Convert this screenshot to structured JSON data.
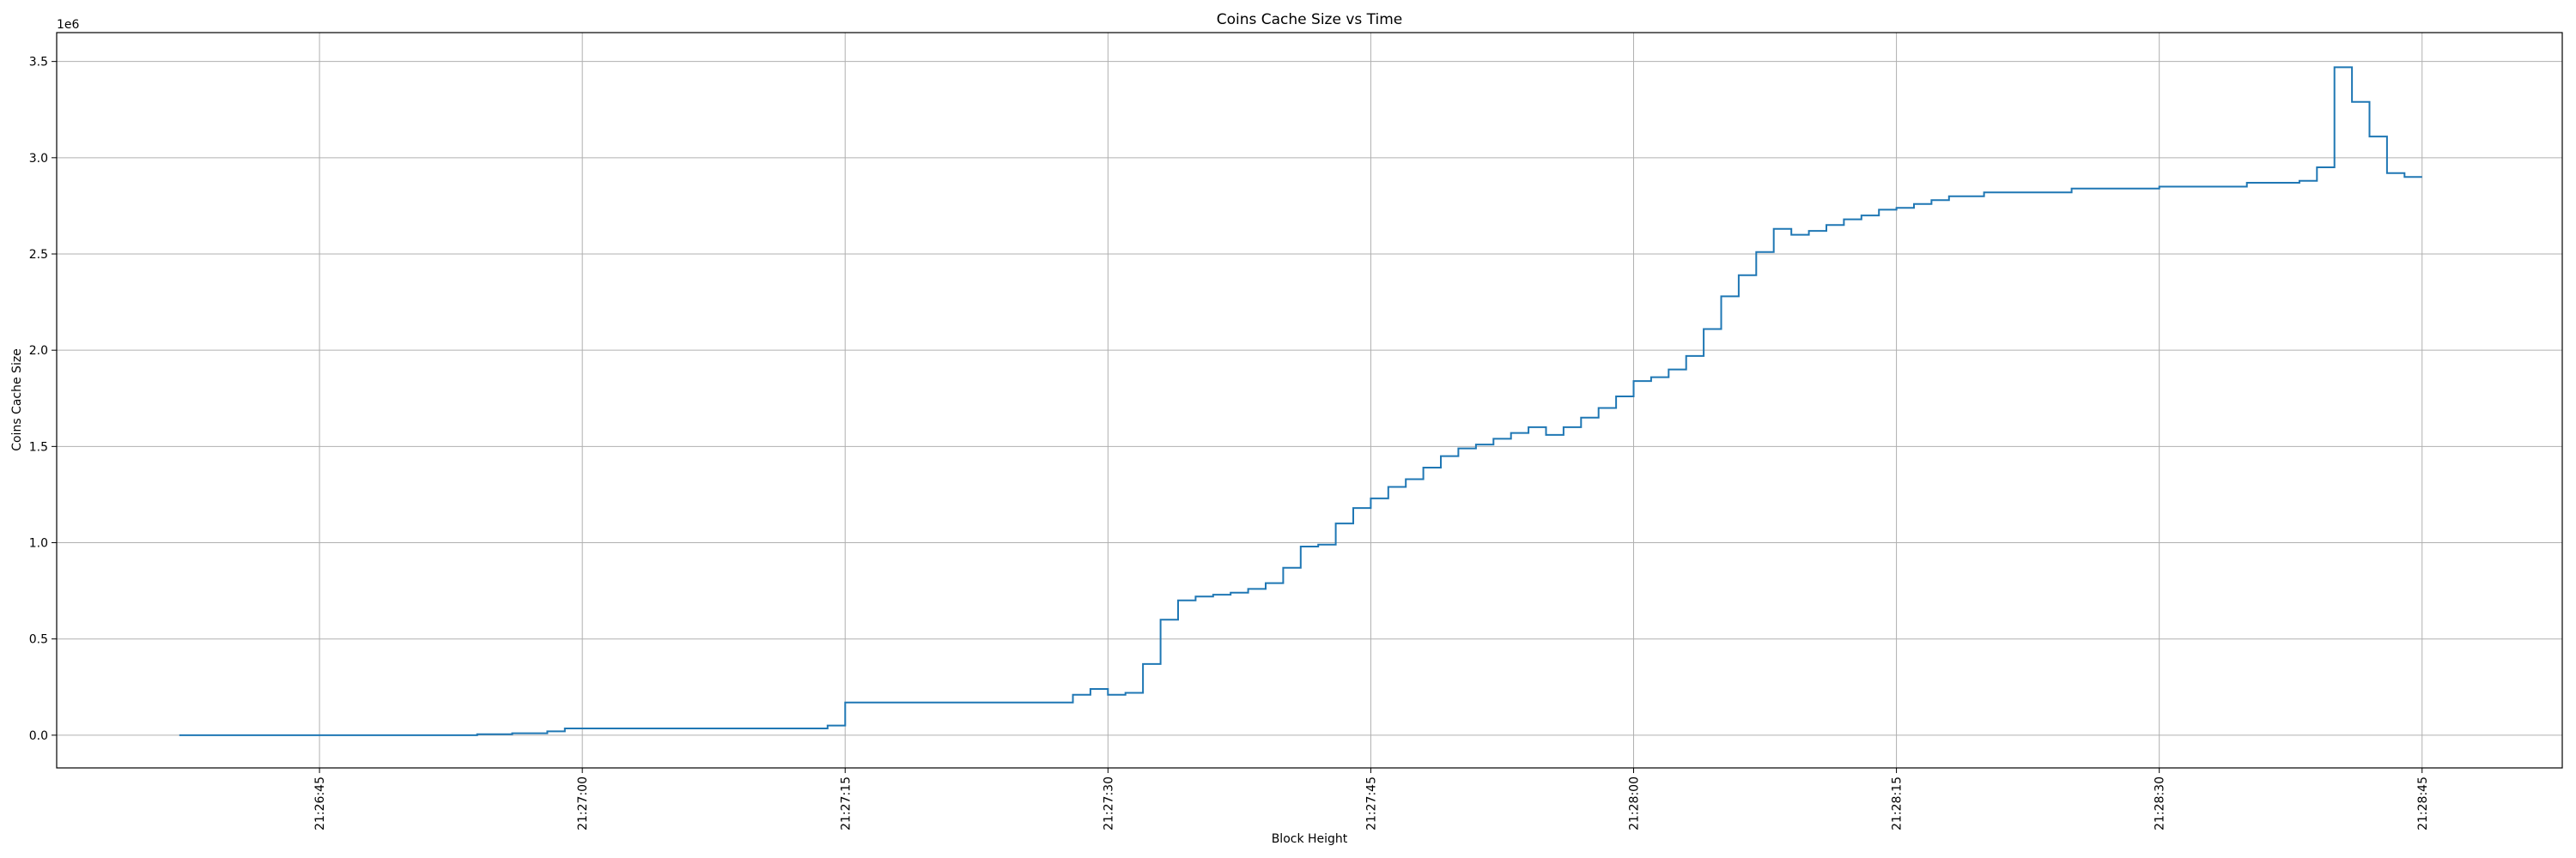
{
  "chart_data": {
    "type": "line",
    "title": "Coins Cache Size vs Time",
    "xlabel": "Block Height",
    "ylabel": "Coins Cache Size",
    "y_offset_text": "1e6",
    "y_scale_factor": 1000000,
    "grid": true,
    "legend": "none",
    "line_color": "#1f77b4",
    "x_is_time": true,
    "xlim": [
      "21:26:30",
      "21:28:53"
    ],
    "ylim": [
      -170000,
      3650000
    ],
    "x_ticks": [
      "21:26:45",
      "21:27:00",
      "21:27:15",
      "21:27:30",
      "21:27:45",
      "21:28:00",
      "21:28:15",
      "21:28:30",
      "21:28:45"
    ],
    "y_ticks": [
      0,
      500000,
      1000000,
      1500000,
      2000000,
      2500000,
      3000000,
      3500000
    ],
    "y_tick_labels": [
      "0.0",
      "0.5",
      "1.0",
      "1.5",
      "2.0",
      "2.5",
      "3.0",
      "3.5"
    ],
    "series": [
      {
        "x": [
          "21:26:37",
          "21:26:54",
          "21:26:56",
          "21:26:58",
          "21:26:59",
          "21:27:14",
          "21:27:15",
          "21:27:28",
          "21:27:29",
          "21:27:30",
          "21:27:31",
          "21:27:32",
          "21:27:33",
          "21:27:34",
          "21:27:35",
          "21:27:36",
          "21:27:37",
          "21:27:38",
          "21:27:39",
          "21:27:40",
          "21:27:41",
          "21:27:42",
          "21:27:43",
          "21:27:44",
          "21:27:45",
          "21:27:46",
          "21:27:47",
          "21:27:48",
          "21:27:49",
          "21:27:50",
          "21:27:51",
          "21:27:52",
          "21:27:53",
          "21:27:54",
          "21:27:55",
          "21:27:56",
          "21:27:57",
          "21:27:58",
          "21:27:59",
          "21:28:00",
          "21:28:01",
          "21:28:02",
          "21:28:03",
          "21:28:04",
          "21:28:05",
          "21:28:06",
          "21:28:07",
          "21:28:08",
          "21:28:09",
          "21:28:10",
          "21:28:11",
          "21:28:12",
          "21:28:13",
          "21:28:14",
          "21:28:15",
          "21:28:16",
          "21:28:17",
          "21:28:18",
          "21:28:20",
          "21:28:25",
          "21:28:30",
          "21:28:35",
          "21:28:38",
          "21:28:39",
          "21:28:40",
          "21:28:41",
          "21:28:42",
          "21:28:43",
          "21:28:44",
          "21:28:45"
        ],
        "y": [
          0,
          5000,
          10000,
          20000,
          35000,
          50000,
          170000,
          210000,
          240000,
          210000,
          220000,
          370000,
          600000,
          700000,
          720000,
          730000,
          740000,
          760000,
          790000,
          870000,
          980000,
          990000,
          1100000,
          1180000,
          1230000,
          1290000,
          1330000,
          1390000,
          1450000,
          1490000,
          1510000,
          1540000,
          1570000,
          1600000,
          1560000,
          1600000,
          1650000,
          1700000,
          1760000,
          1840000,
          1860000,
          1900000,
          1970000,
          2110000,
          2280000,
          2390000,
          2510000,
          2630000,
          2600000,
          2620000,
          2650000,
          2680000,
          2700000,
          2730000,
          2740000,
          2760000,
          2780000,
          2800000,
          2820000,
          2840000,
          2850000,
          2870000,
          2880000,
          2950000,
          3470000,
          3290000,
          3110000,
          2920000,
          2900000,
          2900000
        ]
      }
    ]
  }
}
